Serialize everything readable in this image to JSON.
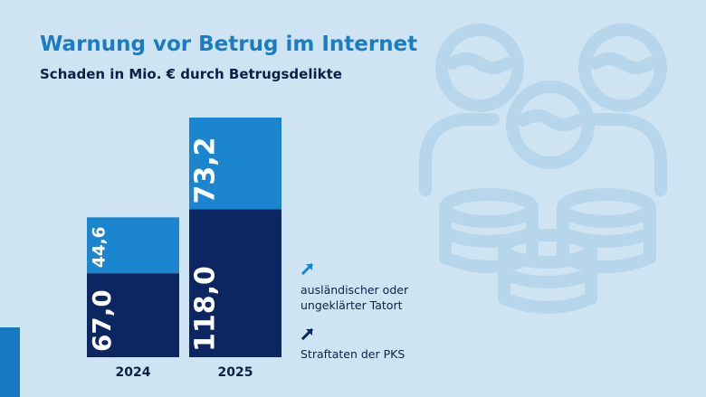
{
  "title": "Warnung vor Betrug im Internet",
  "subtitle": "Schaden in Mio. € durch Betrugsdelikte",
  "legend": [
    {
      "label_line1": "ausländischer oder",
      "label_line2": "ungeklärter Tatort",
      "color": "#1b86cf",
      "icon": "arrow-up-right-icon"
    },
    {
      "label_line1": "Straftaten der PKS",
      "label_line2": "",
      "color": "#0b2660",
      "icon": "arrow-up-right-icon"
    }
  ],
  "chart_data": {
    "type": "bar",
    "stacked": true,
    "categories": [
      "2024",
      "2025"
    ],
    "series": [
      {
        "name": "Straftaten der PKS",
        "values": [
          67.0,
          118.0
        ],
        "labels": [
          "67,0",
          "118,0"
        ],
        "color": "#0b2660"
      },
      {
        "name": "ausländischer oder ungeklärter Tatort",
        "values": [
          44.6,
          73.2
        ],
        "labels": [
          "44,6",
          "73,2"
        ],
        "color": "#1b86cf"
      }
    ],
    "title": "Warnung vor Betrug im Internet",
    "subtitle": "Schaden in Mio. € durch Betrugsdelikte",
    "xlabel": "",
    "ylabel": "",
    "ylim": [
      0,
      191.2
    ],
    "grid": false,
    "legend_position": "right"
  }
}
